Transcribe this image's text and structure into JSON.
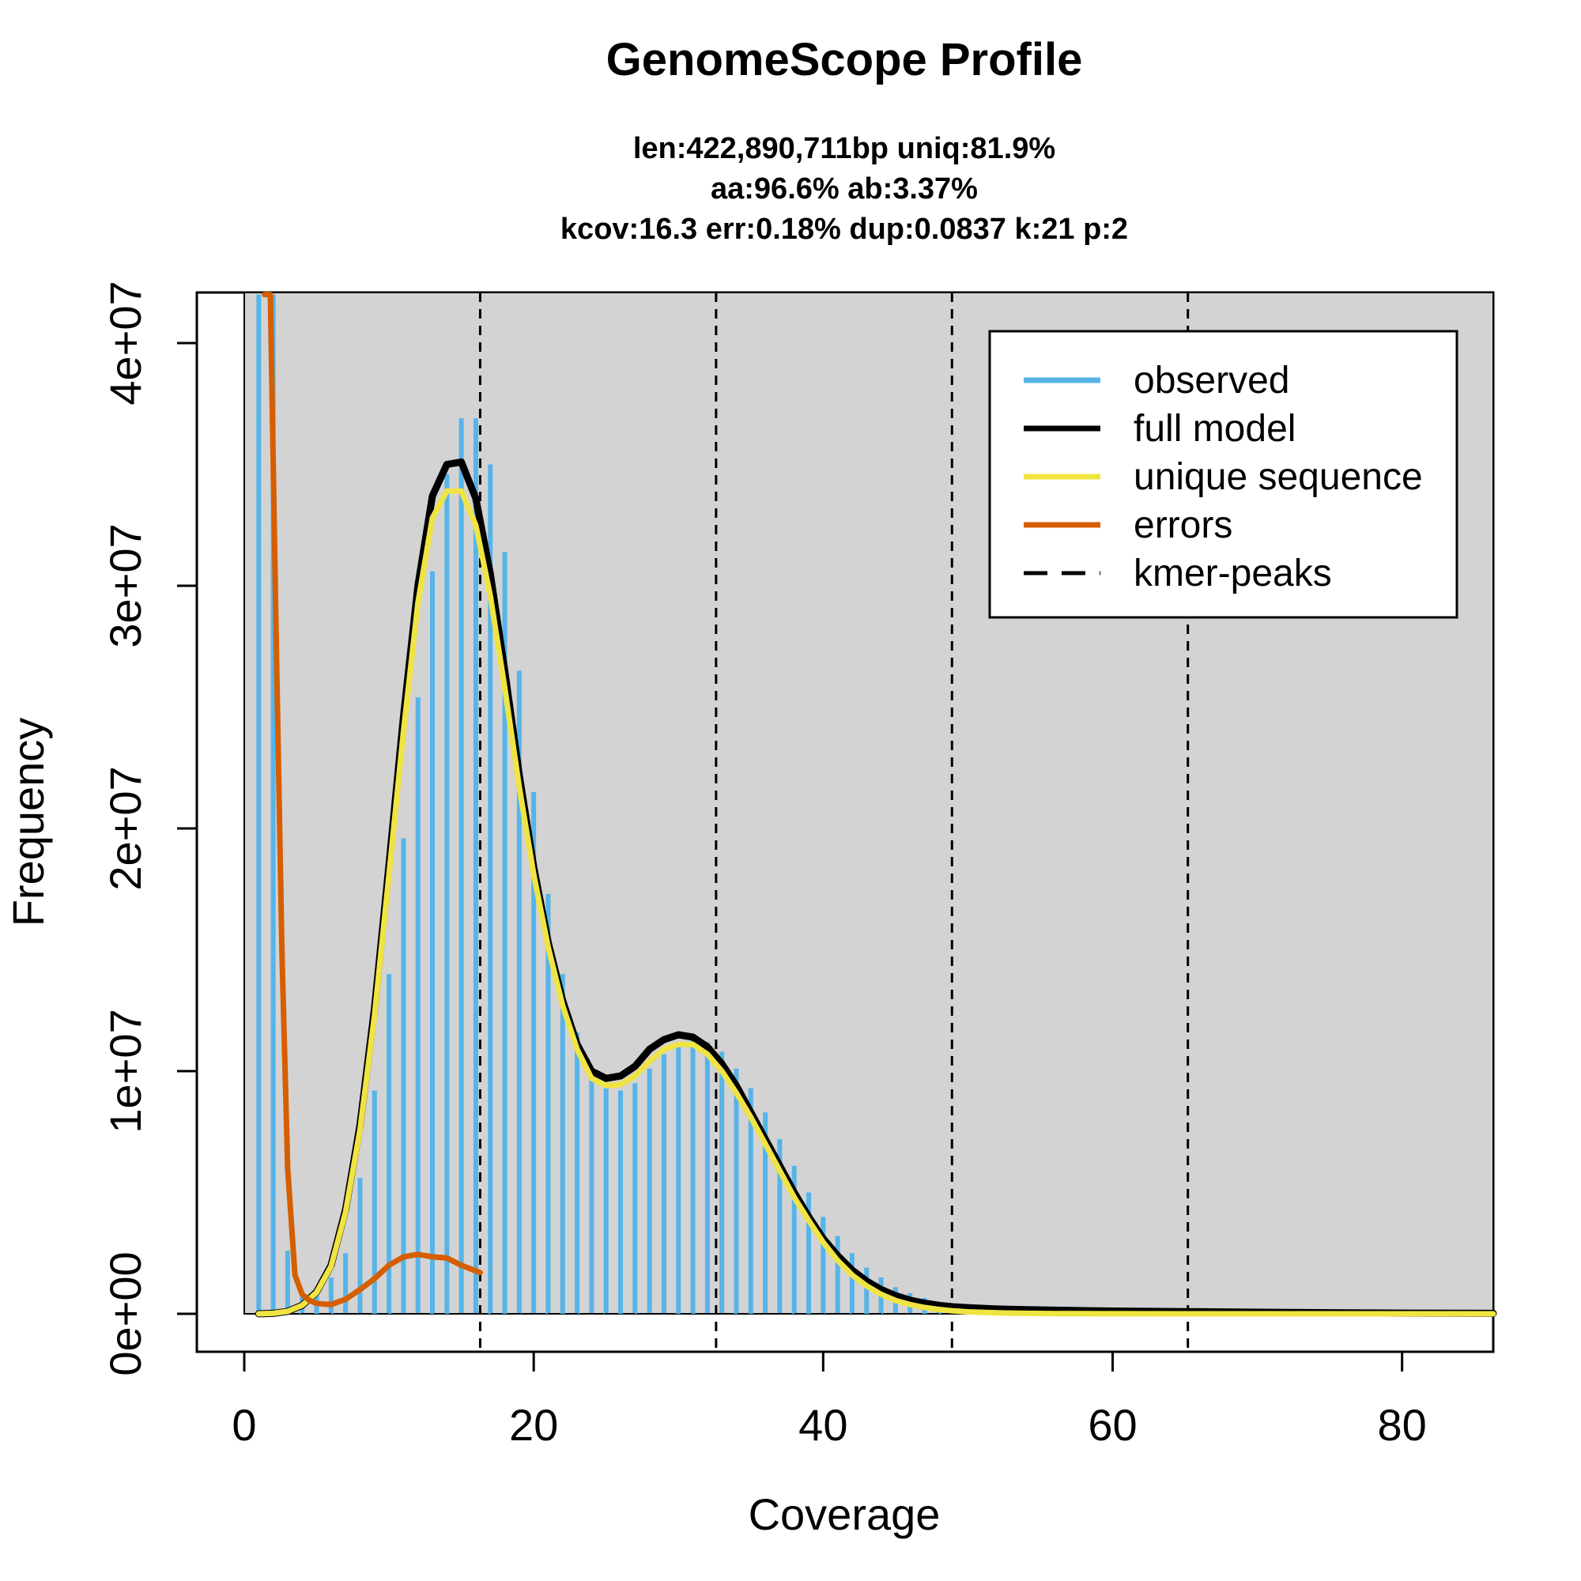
{
  "chart_data": {
    "type": "line",
    "title": "GenomeScope Profile",
    "subtitle_lines": [
      "len:422,890,711bp uniq:81.9%",
      "aa:96.6% ab:3.37%",
      "kcov:16.3 err:0.18%  dup:0.0837  k:21 p:2"
    ],
    "xlabel": "Coverage",
    "ylabel": "Frequency",
    "xlim": [
      0,
      86.3
    ],
    "ylim": [
      0,
      42000000
    ],
    "x_ticks": [
      0,
      20,
      40,
      60,
      80
    ],
    "x_tick_labels": [
      "0",
      "20",
      "40",
      "60",
      "80"
    ],
    "y_ticks": [
      0,
      10000000,
      20000000,
      30000000,
      40000000
    ],
    "y_tick_labels": [
      "0e+00",
      "1e+07",
      "2e+07",
      "3e+07",
      "4e+07"
    ],
    "grid": false,
    "background_color": "#d3d3d3",
    "legend_position": "top-right",
    "legend": [
      {
        "label": "observed",
        "color": "#56b4e9",
        "style": "solid"
      },
      {
        "label": "full model",
        "color": "#000000",
        "style": "solid"
      },
      {
        "label": "unique sequence",
        "color": "#f0e442",
        "style": "solid"
      },
      {
        "label": "errors",
        "color": "#d55e00",
        "style": "solid"
      },
      {
        "label": "kmer-peaks",
        "color": "#000000",
        "style": "dashed"
      }
    ],
    "kmer_peaks": [
      16.3,
      32.6,
      48.9,
      65.2
    ],
    "observed": {
      "x": [
        1,
        2,
        3,
        4,
        5,
        6,
        7,
        8,
        9,
        10,
        11,
        12,
        13,
        14,
        15,
        16,
        17,
        18,
        19,
        20,
        21,
        22,
        23,
        24,
        25,
        26,
        27,
        28,
        29,
        30,
        31,
        32,
        33,
        34,
        35,
        36,
        37,
        38,
        39,
        40,
        41,
        42,
        43,
        44,
        45,
        46,
        47,
        48,
        49,
        50,
        51,
        52,
        53,
        54,
        55,
        56,
        57,
        58,
        59,
        60,
        61,
        62,
        63,
        64,
        65,
        66,
        67,
        68,
        69,
        70,
        71,
        72,
        73,
        74,
        75,
        76,
        77,
        78,
        79,
        80,
        81,
        82,
        83,
        84,
        85,
        86
      ],
      "y": [
        42000000,
        42000000,
        2600000,
        700000,
        900000,
        1500000,
        2500000,
        5600000,
        9200000,
        14000000,
        19600000,
        25400000,
        30600000,
        34600000,
        36900000,
        36900000,
        35000000,
        31400000,
        26500000,
        21500000,
        17300000,
        14000000,
        11600000,
        10100000,
        9400000,
        9200000,
        9500000,
        10100000,
        10700000,
        11100000,
        11300000,
        11200000,
        10800000,
        10100000,
        9300000,
        8300000,
        7200000,
        6100000,
        5000000,
        4000000,
        3200000,
        2500000,
        1900000,
        1500000,
        1100000,
        850000,
        650000,
        500000,
        380000,
        300000,
        240000,
        200000,
        170000,
        150000,
        130000,
        120000,
        110000,
        100000,
        95000,
        90000,
        85000,
        80000,
        75000,
        70000,
        65000,
        60000,
        55000,
        50000,
        45000,
        40000,
        37000,
        34000,
        31000,
        28000,
        25000,
        22000,
        20000,
        18000,
        16000,
        14000,
        12000,
        10000,
        9000,
        8000,
        7000,
        6000
      ]
    },
    "full_model": {
      "x": [
        1,
        2,
        3,
        4,
        5,
        6,
        7,
        8,
        9,
        10,
        11,
        12,
        13,
        14,
        15,
        16,
        17,
        18,
        19,
        20,
        21,
        22,
        23,
        24,
        25,
        26,
        27,
        28,
        29,
        30,
        31,
        32,
        33,
        34,
        35,
        36,
        37,
        38,
        39,
        40,
        41,
        42,
        43,
        44,
        45,
        46,
        47,
        48,
        49,
        50,
        52,
        54,
        56,
        58,
        60,
        65,
        70,
        75,
        80,
        86.3
      ],
      "y": [
        0,
        20000,
        100000,
        350000,
        900000,
        2000000,
        4300000,
        7800000,
        12600000,
        18500000,
        24600000,
        30000000,
        33700000,
        35000000,
        35100000,
        33600000,
        30500000,
        26500000,
        22200000,
        18400000,
        15300000,
        12900000,
        11100000,
        10000000,
        9700000,
        9800000,
        10200000,
        10900000,
        11300000,
        11500000,
        11400000,
        11000000,
        10300000,
        9400000,
        8300000,
        7200000,
        6100000,
        5000000,
        4000000,
        3100000,
        2400000,
        1800000,
        1350000,
        1000000,
        750000,
        560000,
        440000,
        350000,
        290000,
        250000,
        200000,
        170000,
        150000,
        130000,
        115000,
        90000,
        65000,
        45000,
        30000,
        20000
      ]
    },
    "unique_sequence": {
      "x": [
        1,
        2,
        3,
        4,
        5,
        6,
        7,
        8,
        9,
        10,
        11,
        12,
        13,
        14,
        15,
        16,
        17,
        18,
        19,
        20,
        21,
        22,
        23,
        24,
        25,
        26,
        27,
        28,
        29,
        30,
        31,
        32,
        33,
        34,
        35,
        36,
        37,
        38,
        39,
        40,
        41,
        42,
        43,
        44,
        45,
        46,
        47,
        48,
        49,
        50,
        52,
        54,
        56,
        58,
        60,
        65,
        70,
        75,
        80,
        86.3
      ],
      "y": [
        0,
        20000,
        100000,
        350000,
        880000,
        1950000,
        4200000,
        7600000,
        12300000,
        18100000,
        24000000,
        29300000,
        32800000,
        33900000,
        33900000,
        32500000,
        29600000,
        25800000,
        21700000,
        18100000,
        15100000,
        12700000,
        10900000,
        9700000,
        9400000,
        9450000,
        9800000,
        10400000,
        10900000,
        11100000,
        11100000,
        10700000,
        10000000,
        9100000,
        8100000,
        7000000,
        5900000,
        4800000,
        3850000,
        2950000,
        2200000,
        1600000,
        1150000,
        800000,
        550000,
        380000,
        260000,
        180000,
        120000,
        80000,
        40000,
        20000,
        10000,
        5000,
        3000,
        1500,
        800,
        400,
        200,
        100
      ]
    },
    "errors": {
      "x": [
        1.4,
        1.8,
        2.2,
        2.6,
        3,
        3.5,
        4,
        4.5,
        5,
        5.5,
        6,
        7,
        8,
        9,
        10,
        11,
        12,
        13,
        14,
        15,
        16.3
      ],
      "y": [
        42000000,
        42000000,
        28000000,
        15000000,
        6000000,
        1600000,
        800000,
        550000,
        430000,
        400000,
        380000,
        600000,
        1000000,
        1450000,
        2000000,
        2350000,
        2450000,
        2350000,
        2300000,
        2000000,
        1700000
      ]
    }
  }
}
